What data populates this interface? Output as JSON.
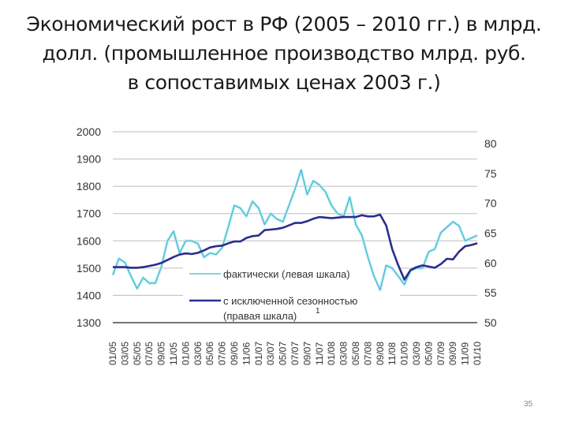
{
  "title": {
    "line1": "Экономический рост в РФ (2005 – 2010 гг.) в млрд.",
    "line2": "долл. (промышленное производство млрд. руб.",
    "line3": "в сопоставимых ценах 2003 г.)"
  },
  "page_number": "35",
  "colors": {
    "actual": "#3fb7d0",
    "actual_glow": "#b8ecf5",
    "seasonal": "#2a2d8c",
    "grid": "#bdbdbd",
    "axis": "#222222"
  },
  "chart_data": {
    "type": "line",
    "title": "Экономический рост в РФ (2005 – 2010 гг.) в млрд. долл. (промышленное производство млрд. руб. в сопоставимых ценах 2003 г.)",
    "xlabel": "",
    "ylabel_left": "",
    "ylabel_right": "",
    "ylim_left": [
      1300,
      2000
    ],
    "ylim_right": [
      50,
      80
    ],
    "yticks_left": [
      1300,
      1400,
      1500,
      1600,
      1700,
      1800,
      1900,
      2000
    ],
    "yticks_right": [
      50,
      55,
      60,
      65,
      70,
      75,
      80
    ],
    "grid": true,
    "legend_position": "inside-bottom-center",
    "xtick_labels": [
      "01/05",
      "03/05",
      "05/05",
      "07/05",
      "09/05",
      "11/05",
      "01/06",
      "03/06",
      "05/06",
      "07/06",
      "09/06",
      "11/06",
      "01/07",
      "03/07",
      "05/07",
      "07/07",
      "09/07",
      "11/07",
      "01/08",
      "03/08",
      "05/08",
      "07/08",
      "09/08",
      "11/08",
      "01/09",
      "03/09",
      "05/09",
      "07/09",
      "09/09",
      "11/09",
      "01/10"
    ],
    "x": [
      "01/05",
      "02/05",
      "03/05",
      "04/05",
      "05/05",
      "06/05",
      "07/05",
      "08/05",
      "09/05",
      "10/05",
      "11/05",
      "12/05",
      "01/06",
      "02/06",
      "03/06",
      "04/06",
      "05/06",
      "06/06",
      "07/06",
      "08/06",
      "09/06",
      "10/06",
      "11/06",
      "12/06",
      "01/07",
      "02/07",
      "03/07",
      "04/07",
      "05/07",
      "06/07",
      "07/07",
      "08/07",
      "09/07",
      "10/07",
      "11/07",
      "12/07",
      "01/08",
      "02/08",
      "03/08",
      "04/08",
      "05/08",
      "06/08",
      "07/08",
      "08/08",
      "09/08",
      "10/08",
      "11/08",
      "12/08",
      "01/09",
      "02/09",
      "03/09",
      "04/09",
      "05/09",
      "06/09",
      "07/09",
      "08/09",
      "09/09",
      "10/09",
      "11/09",
      "12/09",
      "01/10"
    ],
    "series": [
      {
        "name": "фактически (левая шкала)",
        "axis": "left",
        "values": [
          1475,
          1535,
          1520,
          1470,
          1425,
          1465,
          1445,
          1445,
          1505,
          1600,
          1635,
          1555,
          1600,
          1600,
          1590,
          1540,
          1555,
          1550,
          1575,
          1650,
          1730,
          1720,
          1690,
          1745,
          1720,
          1660,
          1700,
          1680,
          1670,
          1730,
          1790,
          1860,
          1770,
          1820,
          1805,
          1780,
          1730,
          1700,
          1690,
          1760,
          1660,
          1620,
          1540,
          1470,
          1420,
          1510,
          1500,
          1470,
          1440,
          1490,
          1500,
          1500,
          1560,
          1570,
          1630,
          1650,
          1670,
          1655,
          1600,
          1610,
          1620
        ]
      },
      {
        "name": "с исключенной сезонностью (правая шкала) 1",
        "axis": "right",
        "values": [
          59.3,
          59.3,
          59.3,
          59.2,
          59.2,
          59.3,
          59.5,
          59.7,
          60.0,
          60.5,
          61.0,
          61.4,
          61.6,
          61.5,
          61.7,
          62.1,
          62.6,
          62.8,
          62.9,
          63.3,
          63.6,
          63.6,
          64.2,
          64.5,
          64.6,
          65.5,
          65.6,
          65.7,
          65.9,
          66.3,
          66.7,
          66.7,
          67.0,
          67.4,
          67.7,
          67.6,
          67.5,
          67.6,
          67.7,
          67.7,
          67.7,
          68.0,
          67.8,
          67.8,
          68.1,
          66.3,
          62.3,
          59.6,
          57.2,
          58.8,
          59.3,
          59.6,
          59.4,
          59.2,
          59.8,
          60.7,
          60.6,
          61.9,
          62.8,
          63.0,
          63.3
        ]
      }
    ]
  },
  "legend": {
    "actual_label": "фактически (левая шкала)",
    "seasonal_label_1": "с исключенной сезонностью",
    "seasonal_label_2": "(правая шкала)",
    "footnote_mark": "1"
  }
}
